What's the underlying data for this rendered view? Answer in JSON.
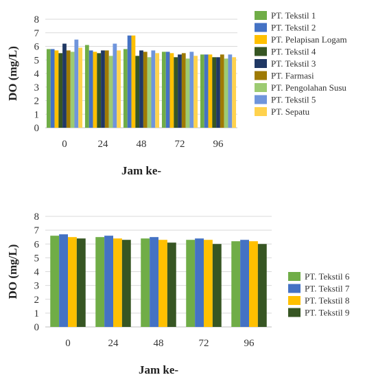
{
  "chart_data": [
    {
      "type": "bar",
      "xlabel": "Jam ke-",
      "ylabel": "DO (mg/L)",
      "ylim": [
        0,
        8
      ],
      "yticks": [
        0,
        1,
        2,
        3,
        4,
        5,
        6,
        7,
        8
      ],
      "grid": true,
      "legend_position": "right",
      "categories": [
        "0",
        "24",
        "48",
        "72",
        "96"
      ],
      "series": [
        {
          "name": "PT. Tekstil 1",
          "color": "#70ad47",
          "values": [
            5.8,
            6.1,
            5.8,
            5.6,
            5.4
          ]
        },
        {
          "name": "PT. Tekstil 2",
          "color": "#4472c4",
          "values": [
            5.8,
            5.7,
            6.8,
            5.6,
            5.4
          ]
        },
        {
          "name": "PT. Pelapisan Logam",
          "color": "#ffc000",
          "values": [
            5.7,
            5.6,
            6.8,
            5.5,
            5.4
          ]
        },
        {
          "name": "PT. Tekstil 4",
          "color": "#375623",
          "values": [
            5.5,
            5.5,
            5.3,
            5.2,
            5.2
          ]
        },
        {
          "name": "PT. Tekstil 3",
          "color": "#203864",
          "values": [
            6.2,
            5.7,
            5.7,
            5.4,
            5.2
          ]
        },
        {
          "name": "PT. Farmasi",
          "color": "#9e7a04",
          "values": [
            5.7,
            5.7,
            5.6,
            5.5,
            5.4
          ]
        },
        {
          "name": "PT. Pengolahan Susu",
          "color": "#9dcb72",
          "values": [
            5.6,
            5.3,
            5.2,
            5.1,
            5.1
          ]
        },
        {
          "name": "PT. Tekstil 5",
          "color": "#6f95dc",
          "values": [
            6.5,
            6.2,
            5.7,
            5.6,
            5.4
          ]
        },
        {
          "name": "PT. Sepatu",
          "color": "#ffd24d",
          "values": [
            5.9,
            5.7,
            5.5,
            5.3,
            5.2
          ]
        }
      ]
    },
    {
      "type": "bar",
      "xlabel": "Jam ke-",
      "ylabel": "DO (mg/L)",
      "ylim": [
        0,
        8
      ],
      "yticks": [
        0,
        1,
        2,
        3,
        4,
        5,
        6,
        7,
        8
      ],
      "grid": true,
      "legend_position": "right",
      "categories": [
        "0",
        "24",
        "48",
        "72",
        "96"
      ],
      "series": [
        {
          "name": "PT. Tekstil 6",
          "color": "#70ad47",
          "values": [
            6.6,
            6.5,
            6.4,
            6.3,
            6.2
          ]
        },
        {
          "name": "PT. Tekstil 7",
          "color": "#4472c4",
          "values": [
            6.7,
            6.6,
            6.5,
            6.4,
            6.3
          ]
        },
        {
          "name": "PT. Tekstil 8",
          "color": "#ffc000",
          "values": [
            6.5,
            6.4,
            6.3,
            6.3,
            6.2
          ]
        },
        {
          "name": "PT. Tekstil 9",
          "color": "#375623",
          "values": [
            6.4,
            6.3,
            6.1,
            6.0,
            6.0
          ]
        }
      ]
    }
  ]
}
